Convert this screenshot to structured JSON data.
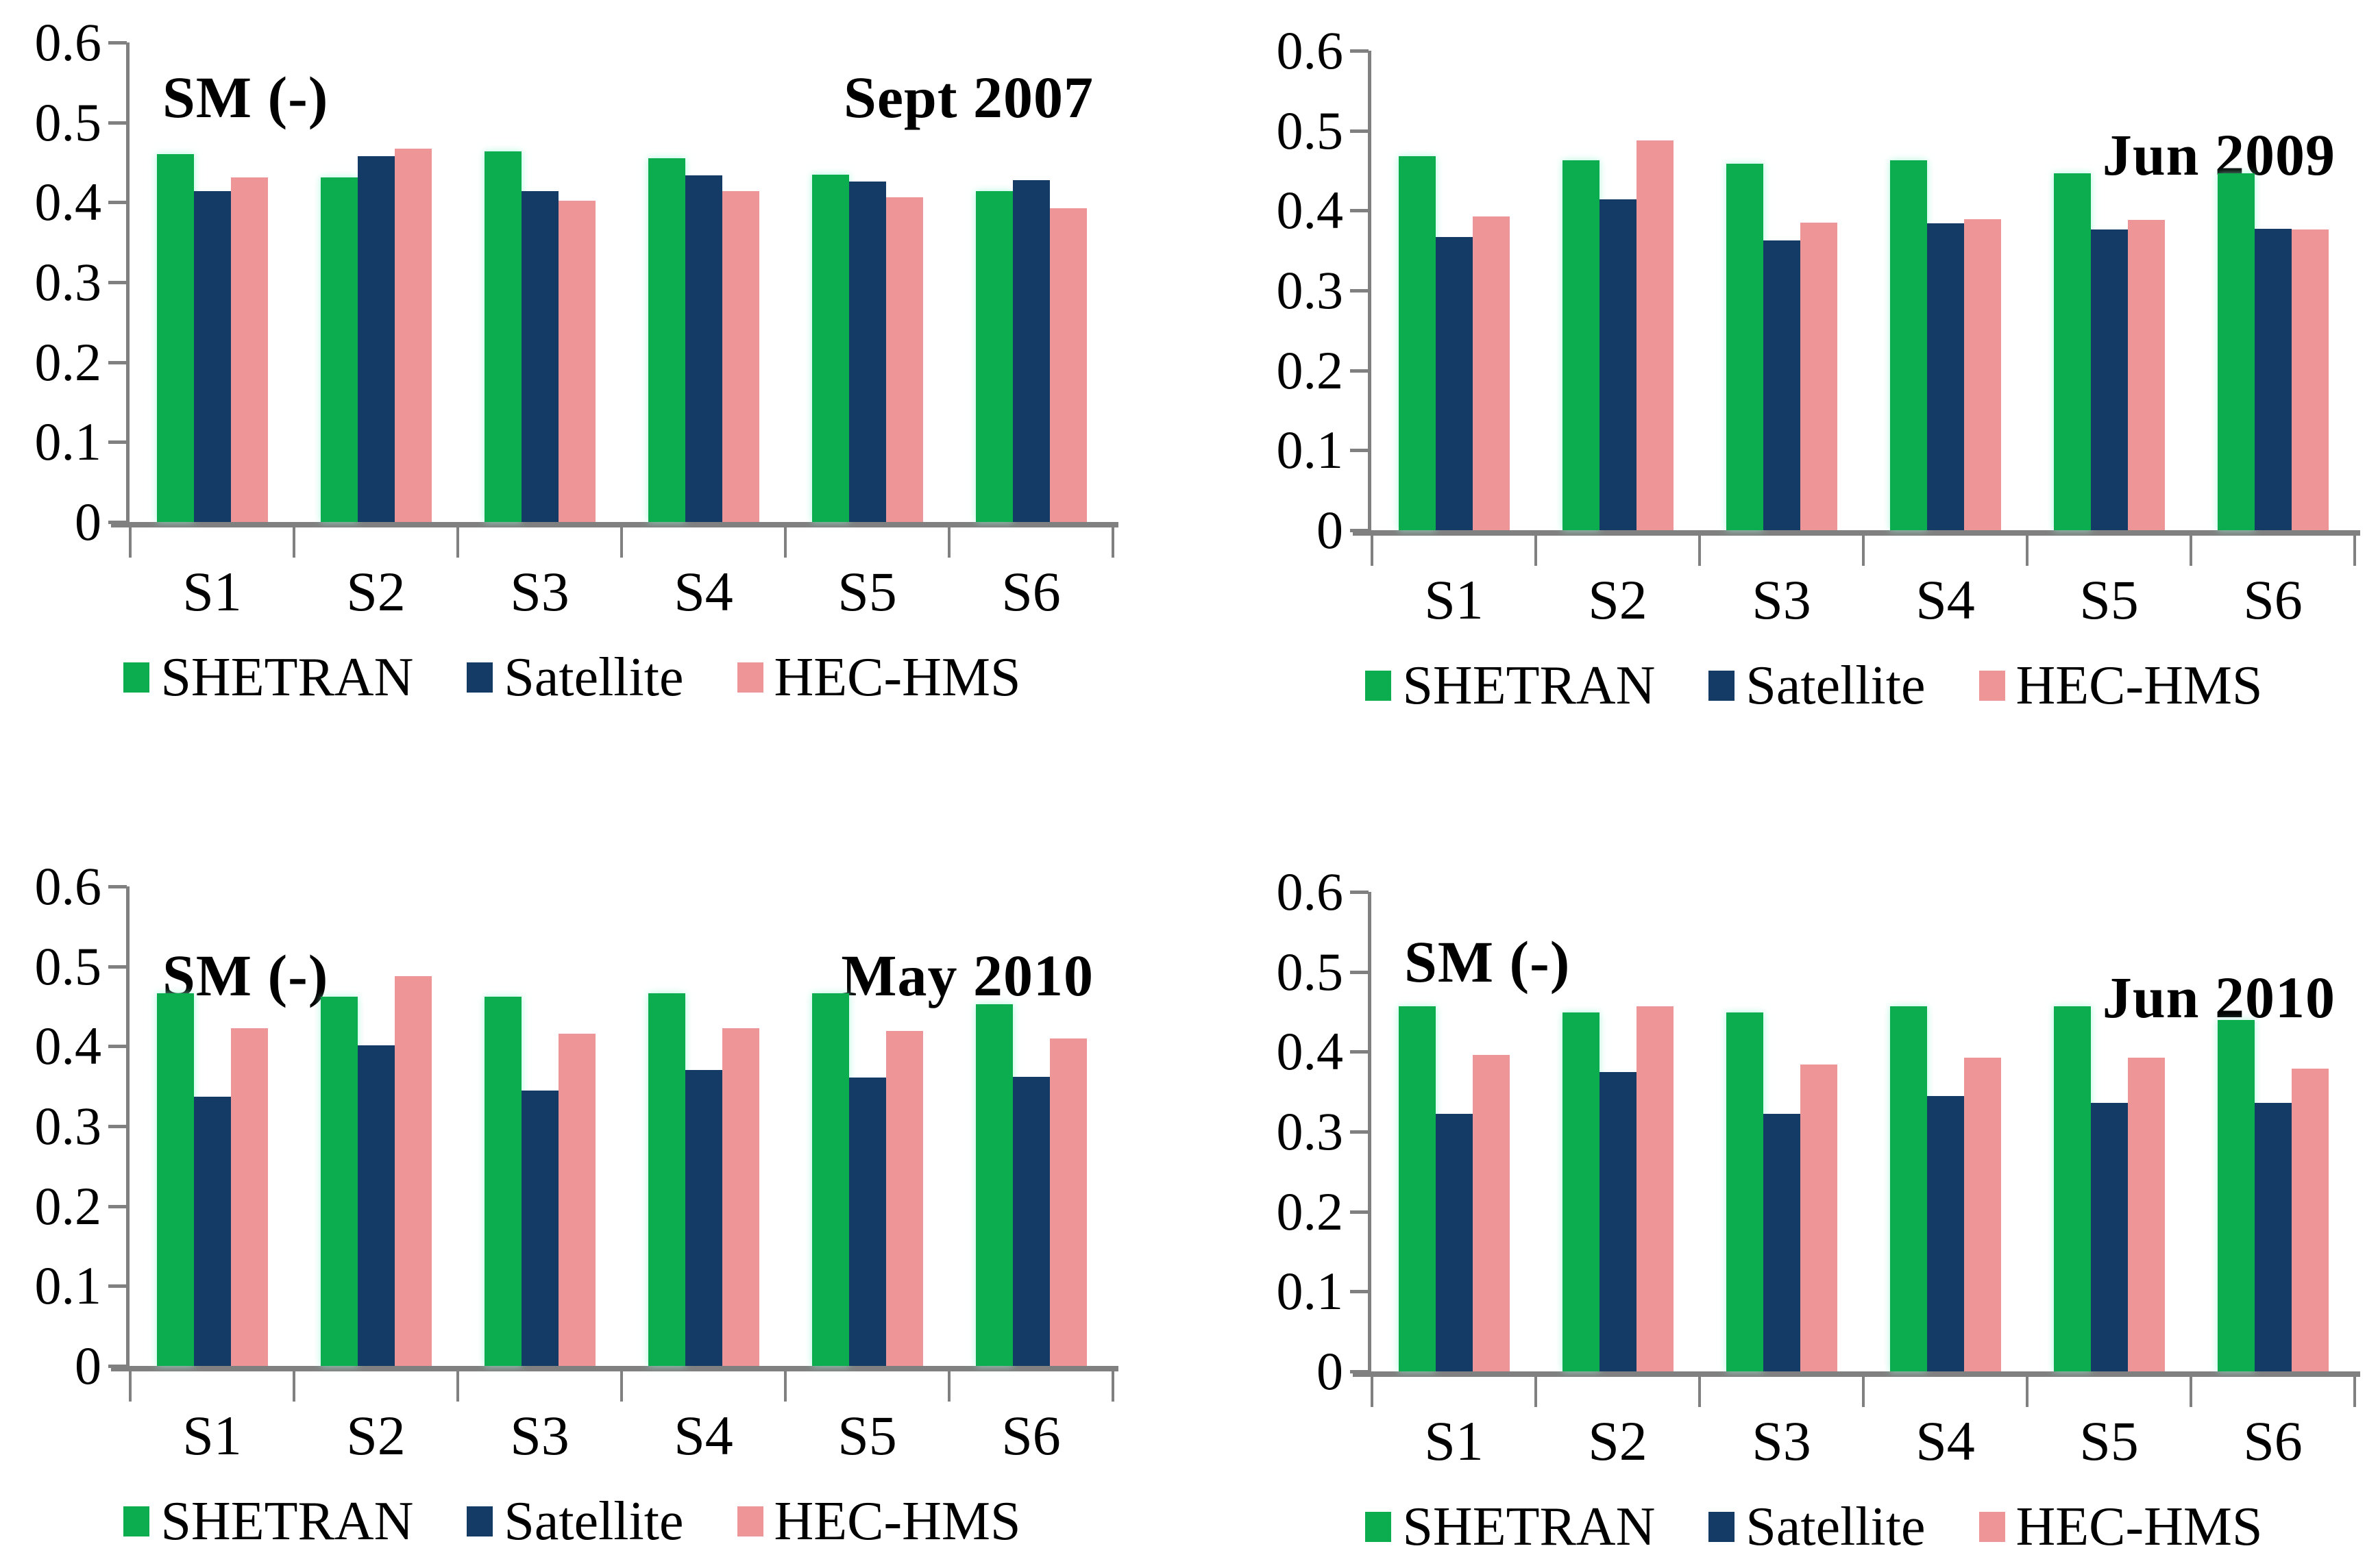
{
  "figure": {
    "background": "#ffffff",
    "description": "2x2 grid of grouped bar charts comparing soil moisture (SM) from SHETRAN, Satellite and HEC-HMS at sites S1-S6 for four dates"
  },
  "palette": {
    "shetran": "#0CAD4F",
    "satellite": "#143A66",
    "hechms": "#EE9597",
    "axis": "#808080",
    "text": "#000000"
  },
  "legend_labels": [
    "SHETRAN",
    "Satellite",
    "HEC-HMS"
  ],
  "chart_data": [
    {
      "type": "bar",
      "title_left": "SM (-)",
      "title_right": "Sept 2007",
      "ylabel": "SM (-)",
      "categories": [
        "S1",
        "S2",
        "S3",
        "S4",
        "S5",
        "S6"
      ],
      "ylim": [
        0,
        0.6
      ],
      "ytick_labels": [
        "0.6",
        "0.5",
        "0.4",
        "0.3",
        "0.2",
        "0.1",
        "0"
      ],
      "grid": false,
      "legend_position": "bottom",
      "series": [
        {
          "name": "SHETRAN",
          "color_key": "shetran",
          "values": [
            0.46,
            0.431,
            0.464,
            0.455,
            0.435,
            0.414
          ]
        },
        {
          "name": "Satellite",
          "color_key": "satellite",
          "values": [
            0.414,
            0.458,
            0.414,
            0.434,
            0.426,
            0.428
          ]
        },
        {
          "name": "HEC-HMS",
          "color_key": "hechms",
          "values": [
            0.431,
            0.467,
            0.402,
            0.414,
            0.406,
            0.393
          ]
        }
      ]
    },
    {
      "type": "bar",
      "title_left": "",
      "title_right": "Jun 2009",
      "ylabel": "",
      "categories": [
        "S1",
        "S2",
        "S3",
        "S4",
        "S5",
        "S6"
      ],
      "ylim": [
        0,
        0.6
      ],
      "ytick_labels": [
        "0.6",
        "0.5",
        "0.4",
        "0.3",
        "0.2",
        "0.1",
        "0"
      ],
      "grid": false,
      "legend_position": "bottom",
      "series": [
        {
          "name": "SHETRAN",
          "color_key": "shetran",
          "values": [
            0.468,
            0.463,
            0.459,
            0.463,
            0.447,
            0.447
          ]
        },
        {
          "name": "Satellite",
          "color_key": "satellite",
          "values": [
            0.367,
            0.414,
            0.363,
            0.384,
            0.376,
            0.377
          ]
        },
        {
          "name": "HEC-HMS",
          "color_key": "hechms",
          "values": [
            0.393,
            0.488,
            0.385,
            0.389,
            0.388,
            0.376
          ]
        }
      ]
    },
    {
      "type": "bar",
      "title_left": "SM (-)",
      "title_right": "May 2010",
      "ylabel": "SM (-)",
      "categories": [
        "S1",
        "S2",
        "S3",
        "S4",
        "S5",
        "S6"
      ],
      "ylim": [
        0,
        0.6
      ],
      "ytick_labels": [
        "0.6",
        "0.5",
        "0.4",
        "0.3",
        "0.2",
        "0.1",
        "0"
      ],
      "grid": false,
      "legend_position": "bottom",
      "series": [
        {
          "name": "SHETRAN",
          "color_key": "shetran",
          "values": [
            0.466,
            0.462,
            0.462,
            0.466,
            0.466,
            0.453
          ]
        },
        {
          "name": "Satellite",
          "color_key": "satellite",
          "values": [
            0.337,
            0.401,
            0.345,
            0.37,
            0.361,
            0.362
          ]
        },
        {
          "name": "HEC-HMS",
          "color_key": "hechms",
          "values": [
            0.423,
            0.488,
            0.416,
            0.423,
            0.419,
            0.41
          ]
        }
      ]
    },
    {
      "type": "bar",
      "title_left": "SM (-)",
      "title_right": "Jun 2010",
      "ylabel": "SM (-)",
      "categories": [
        "S1",
        "S2",
        "S3",
        "S4",
        "S5",
        "S6"
      ],
      "ylim": [
        0,
        0.6
      ],
      "ytick_labels": [
        "0.6",
        "0.5",
        "0.4",
        "0.3",
        "0.2",
        "0.1",
        "0"
      ],
      "grid": false,
      "legend_position": "bottom",
      "series": [
        {
          "name": "SHETRAN",
          "color_key": "shetran",
          "values": [
            0.457,
            0.449,
            0.449,
            0.457,
            0.457,
            0.44
          ]
        },
        {
          "name": "Satellite",
          "color_key": "satellite",
          "values": [
            0.322,
            0.375,
            0.322,
            0.345,
            0.336,
            0.336
          ]
        },
        {
          "name": "HEC-HMS",
          "color_key": "hechms",
          "values": [
            0.396,
            0.457,
            0.384,
            0.393,
            0.393,
            0.379
          ]
        }
      ]
    }
  ]
}
